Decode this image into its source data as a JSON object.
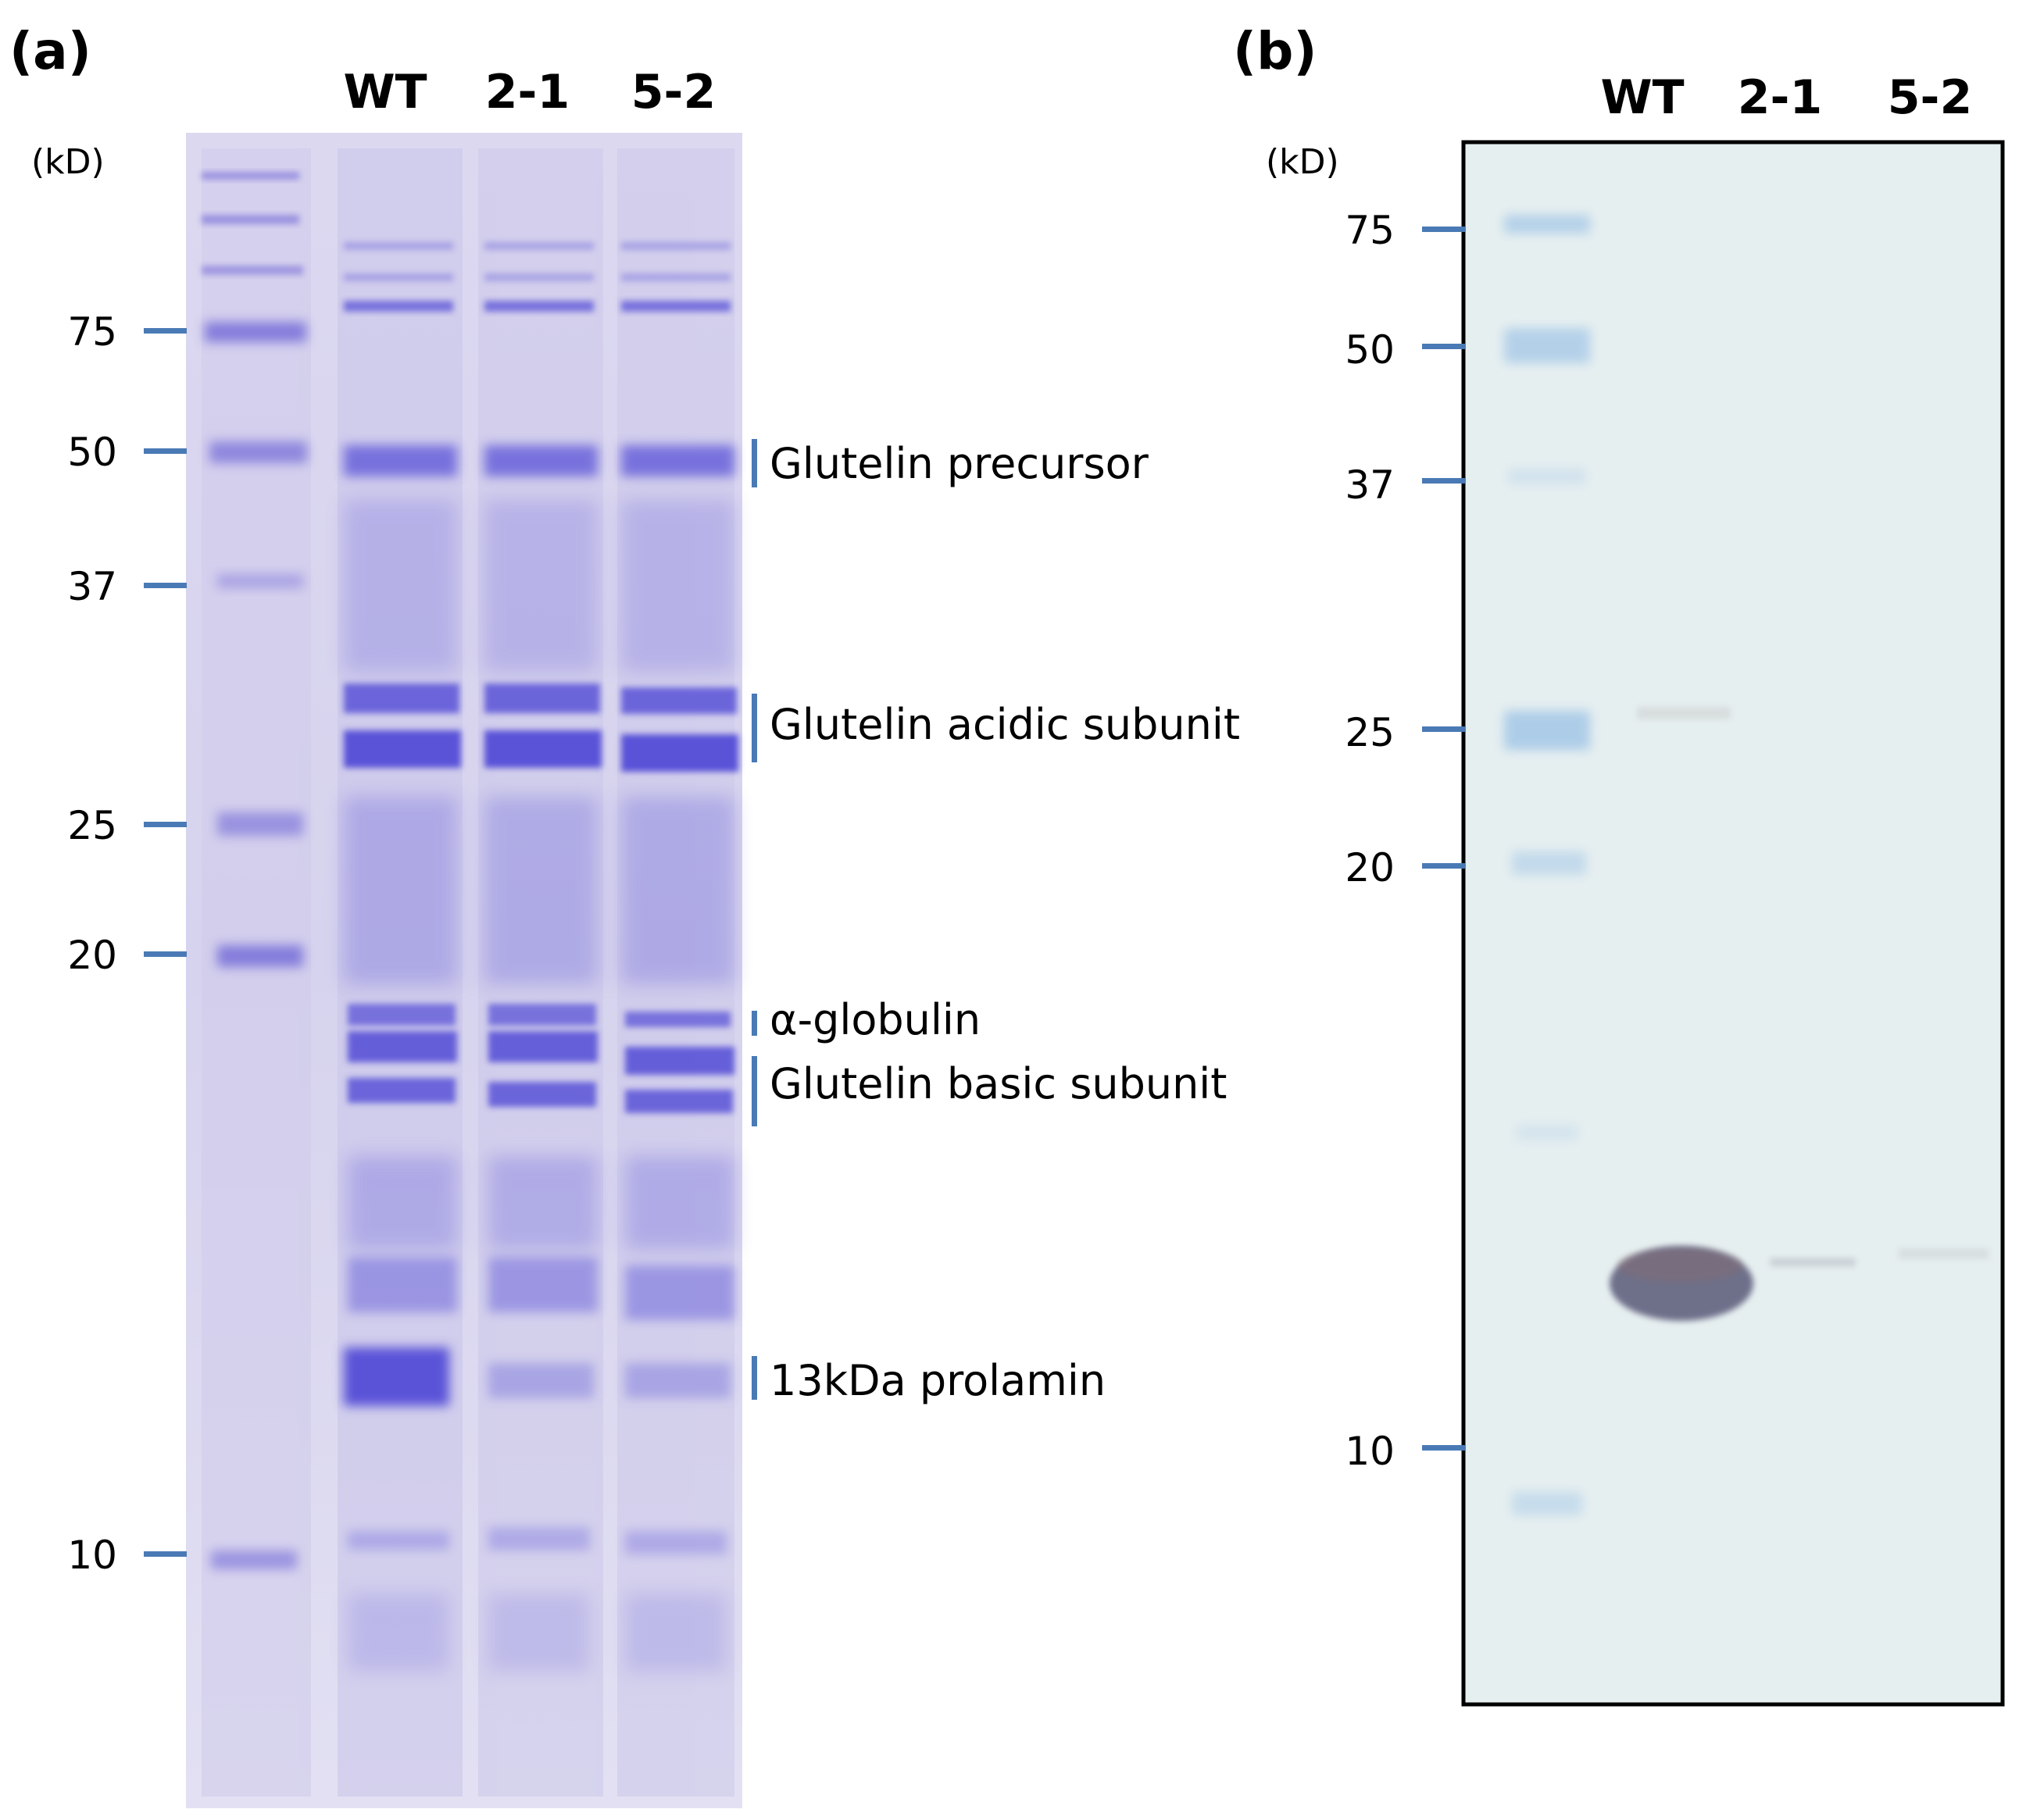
{
  "panels": [
    {
      "id": "a",
      "label": "(a)",
      "unit": "(kD)",
      "lanes": [
        "WT",
        "2-1",
        "5-2"
      ],
      "markers": [
        "75",
        "50",
        "37",
        "25",
        "20",
        "10"
      ],
      "annotations": [
        "Glutelin precursor",
        "Glutelin acidic subunit",
        "α-globulin",
        "Glutelin basic subunit",
        "13kDa prolamin"
      ]
    },
    {
      "id": "b",
      "label": "(b)",
      "unit": "(kD)",
      "lanes": [
        "WT",
        "2-1",
        "5-2"
      ],
      "markers": [
        "75",
        "50",
        "37",
        "25",
        "20",
        "10"
      ]
    }
  ],
  "colors": {
    "tick": "#4a7ab5",
    "gel_background": "#d9d6ef",
    "gel_stain": "#5a52d8",
    "blot_background": "#e6eff0",
    "blot_signal": "#6e6f8a"
  }
}
